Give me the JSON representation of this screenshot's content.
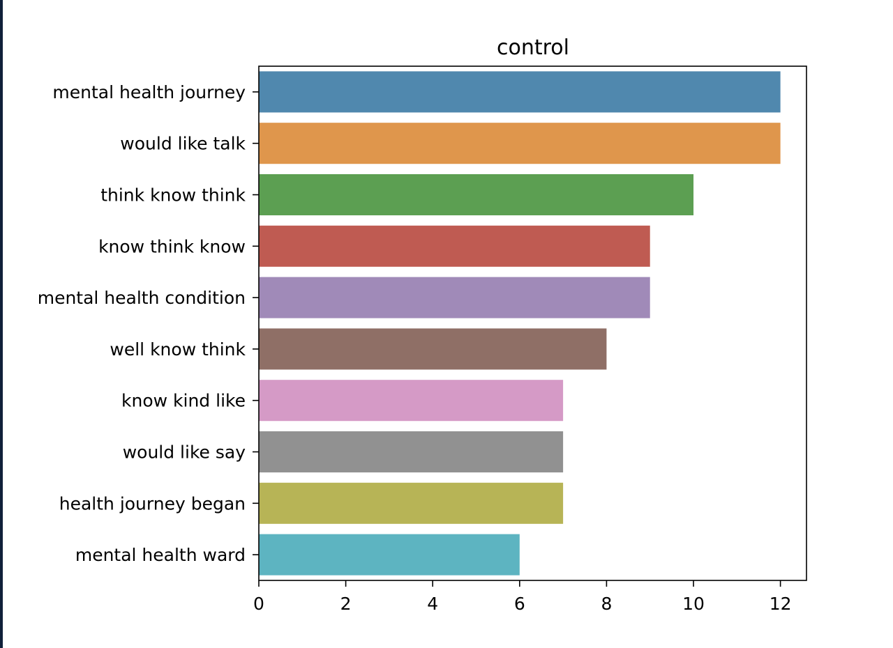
{
  "chart_data": {
    "type": "bar",
    "orientation": "horizontal",
    "title": "control",
    "xlabel": "",
    "ylabel": "",
    "categories": [
      "mental health journey",
      "would like talk",
      "think know think",
      "know think know",
      "mental health condition",
      "well know think",
      "know kind like",
      "would like say",
      "health journey began",
      "mental health ward"
    ],
    "values": [
      12,
      12,
      10,
      9,
      9,
      8,
      7,
      7,
      7,
      6
    ],
    "colors": [
      "#5088ae",
      "#df964c",
      "#5c9f52",
      "#bf5b52",
      "#a08ab8",
      "#8f6f66",
      "#d59ac6",
      "#919191",
      "#b7b456",
      "#5db4c1"
    ],
    "xlim": [
      0,
      12.6
    ],
    "xticks": [
      0,
      2,
      4,
      6,
      8,
      10,
      12
    ],
    "grid": false,
    "legend": "none"
  }
}
